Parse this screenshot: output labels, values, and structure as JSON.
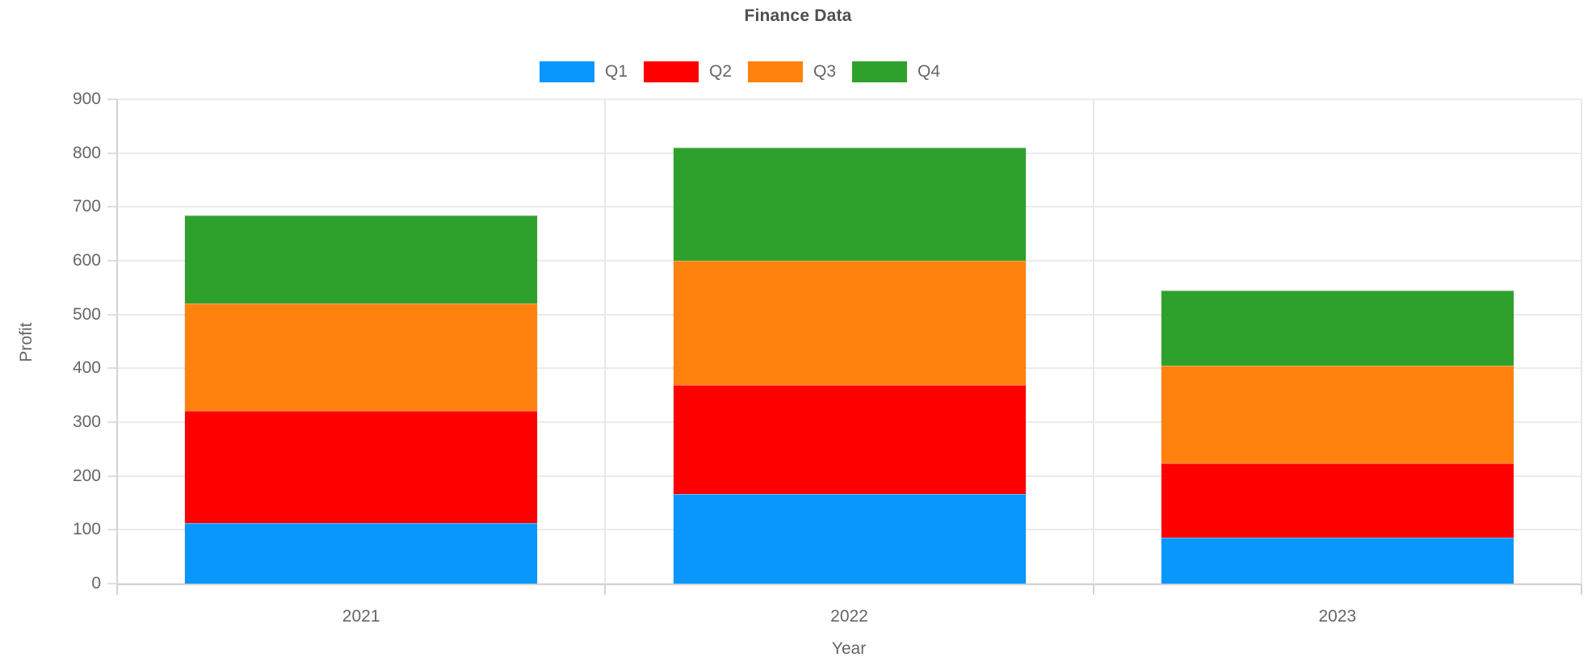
{
  "chart_data": {
    "type": "bar",
    "stacked": true,
    "title": "Finance Data",
    "categories": [
      "2021",
      "2022",
      "2023"
    ],
    "series": [
      {
        "name": "Q1",
        "color": "#0997fe",
        "values": [
          113,
          167,
          85
        ]
      },
      {
        "name": "Q2",
        "color": "#fe0000",
        "values": [
          208,
          202,
          139
        ]
      },
      {
        "name": "Q3",
        "color": "#ff820e",
        "values": [
          200,
          231,
          181
        ]
      },
      {
        "name": "Q4",
        "color": "#2ea12c",
        "values": [
          163,
          210,
          139
        ]
      }
    ],
    "stack_totals": [
      684,
      810,
      544
    ],
    "xlabel": "Year",
    "ylabel": "Profit",
    "ylim": [
      0,
      900
    ],
    "y_tick_step": 100,
    "y_ticks": [
      0,
      100,
      200,
      300,
      400,
      500,
      600,
      700,
      800,
      900
    ],
    "grid": "horizontal",
    "legend_position": "top",
    "text_color": "#666666",
    "title_color": "#4f4f4f",
    "gridline_color": "#ebebeb"
  }
}
